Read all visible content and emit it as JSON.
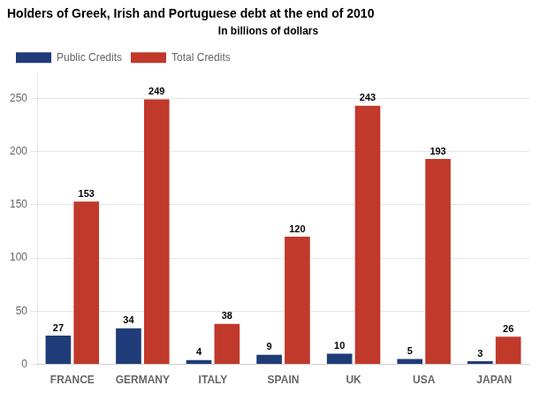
{
  "chart_data": {
    "type": "bar",
    "title": "Holders of Greek, Irish and Portuguese debt at the end of 2010",
    "subtitle": "In billions of dollars",
    "categories": [
      "FRANCE",
      "GERMANY",
      "ITALY",
      "SPAIN",
      "UK",
      "USA",
      "JAPAN"
    ],
    "series": [
      {
        "name": "Public Credits",
        "color": "#1f3c78",
        "values": [
          27,
          34,
          4,
          9,
          10,
          5,
          3
        ]
      },
      {
        "name": "Total Credits",
        "color": "#c0392b",
        "values": [
          153,
          249,
          38,
          120,
          243,
          193,
          26
        ]
      }
    ],
    "ylim": [
      0,
      275
    ],
    "yticks": [
      0,
      50,
      100,
      150,
      200,
      250
    ],
    "grid": true,
    "legend": "upper left",
    "data_labels": true
  }
}
